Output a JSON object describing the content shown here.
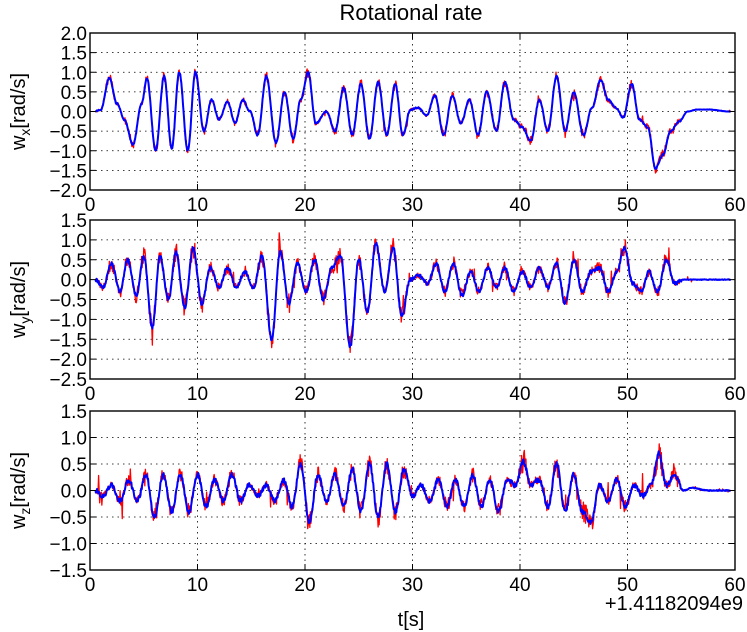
{
  "chart_data": {
    "type": "line",
    "title": "Rotational rate",
    "xlabel": "t[s]",
    "x_offset_label": "+1.41182094e9",
    "xlim": [
      0,
      60
    ],
    "x_ticks": [
      0,
      10,
      20,
      30,
      40,
      50,
      60
    ],
    "x_tick_labels": [
      "0",
      "10",
      "20",
      "30",
      "40",
      "50",
      "60"
    ],
    "series_colors": {
      "raw": "#ff0000",
      "filtered": "#0000ff"
    },
    "subplots": [
      {
        "name": "wx",
        "ylabel_main": "w",
        "ylabel_sub": "x",
        "ylabel_unit": "[rad/s]",
        "ylim": [
          -2.0,
          2.0
        ],
        "y_ticks": [
          2.0,
          1.5,
          1.0,
          0.5,
          0.0,
          -0.5,
          -1.0,
          -1.5,
          -2.0
        ],
        "y_tick_labels": [
          "2.0",
          "1.5",
          "1.0",
          "0.5",
          "0.0",
          "−0.5",
          "−1.0",
          "−1.5",
          "−2.0"
        ],
        "noise": 0.12,
        "peaks": [
          [
            0.5,
            0.0
          ],
          [
            1.0,
            0.05
          ],
          [
            1.8,
            0.85
          ],
          [
            2.5,
            0.2
          ],
          [
            3.2,
            -0.2
          ],
          [
            4.0,
            -0.85
          ],
          [
            4.8,
            0.2
          ],
          [
            5.3,
            0.85
          ],
          [
            6.1,
            -1.0
          ],
          [
            6.9,
            0.9
          ],
          [
            7.6,
            -0.95
          ],
          [
            8.3,
            1.0
          ],
          [
            9.1,
            -1.0
          ],
          [
            9.8,
            1.0
          ],
          [
            10.6,
            -0.5
          ],
          [
            11.3,
            0.3
          ],
          [
            12.0,
            -0.2
          ],
          [
            12.8,
            0.25
          ],
          [
            13.5,
            -0.3
          ],
          [
            14.2,
            0.3
          ],
          [
            14.9,
            0.0
          ],
          [
            15.6,
            -0.6
          ],
          [
            16.4,
            0.9
          ],
          [
            17.3,
            -0.8
          ],
          [
            18.1,
            0.5
          ],
          [
            18.9,
            -0.7
          ],
          [
            19.6,
            0.3
          ],
          [
            20.3,
            1.0
          ],
          [
            21.0,
            -0.3
          ],
          [
            22.0,
            0.0
          ],
          [
            22.8,
            -0.5
          ],
          [
            23.6,
            0.6
          ],
          [
            24.4,
            -0.6
          ],
          [
            25.2,
            0.7
          ],
          [
            26.0,
            -0.7
          ],
          [
            26.8,
            0.75
          ],
          [
            27.6,
            -0.6
          ],
          [
            28.4,
            0.7
          ],
          [
            29.1,
            -0.6
          ],
          [
            29.8,
            0.05
          ],
          [
            30.5,
            0.1
          ],
          [
            31.3,
            -0.1
          ],
          [
            32.1,
            0.4
          ],
          [
            32.9,
            -0.6
          ],
          [
            33.7,
            0.4
          ],
          [
            34.5,
            -0.3
          ],
          [
            35.3,
            0.3
          ],
          [
            36.1,
            -0.6
          ],
          [
            36.9,
            0.5
          ],
          [
            37.8,
            -0.5
          ],
          [
            38.6,
            0.75
          ],
          [
            39.4,
            -0.2
          ],
          [
            40.2,
            -0.4
          ],
          [
            41.0,
            -0.75
          ],
          [
            41.8,
            0.3
          ],
          [
            42.6,
            -0.5
          ],
          [
            43.4,
            0.9
          ],
          [
            44.2,
            -0.5
          ],
          [
            45.0,
            0.5
          ],
          [
            45.9,
            -0.6
          ],
          [
            46.7,
            0.1
          ],
          [
            47.5,
            0.8
          ],
          [
            48.2,
            0.3
          ],
          [
            48.9,
            0.1
          ],
          [
            49.6,
            -0.15
          ],
          [
            50.4,
            0.7
          ],
          [
            51.1,
            -0.2
          ],
          [
            51.9,
            -0.4
          ],
          [
            52.6,
            -1.45
          ],
          [
            53.3,
            -1.1
          ],
          [
            54.0,
            -0.5
          ],
          [
            54.8,
            -0.25
          ],
          [
            55.6,
            0.0
          ],
          [
            56.5,
            0.05
          ],
          [
            57.5,
            0.05
          ],
          [
            59.5,
            0.0
          ]
        ]
      },
      {
        "name": "wy",
        "ylabel_main": "w",
        "ylabel_sub": "y",
        "ylabel_unit": "[rad/s]",
        "ylim": [
          -2.5,
          1.5
        ],
        "y_ticks": [
          1.5,
          1.0,
          0.5,
          0.0,
          -0.5,
          -1.0,
          -1.5,
          -2.0,
          -2.5
        ],
        "y_tick_labels": [
          "1.5",
          "1.0",
          "0.5",
          "0.0",
          "−0.5",
          "−1.0",
          "−1.5",
          "−2.0",
          "−2.5"
        ],
        "noise": 0.25,
        "peaks": [
          [
            0.5,
            0.0
          ],
          [
            1.2,
            -0.2
          ],
          [
            2.0,
            0.4
          ],
          [
            2.8,
            -0.3
          ],
          [
            3.5,
            0.5
          ],
          [
            4.3,
            -0.4
          ],
          [
            5.0,
            0.6
          ],
          [
            5.8,
            -1.2
          ],
          [
            6.5,
            0.6
          ],
          [
            7.3,
            -0.5
          ],
          [
            8.0,
            0.7
          ],
          [
            8.8,
            -0.7
          ],
          [
            9.6,
            0.8
          ],
          [
            10.4,
            -0.6
          ],
          [
            11.2,
            0.3
          ],
          [
            12.0,
            -0.2
          ],
          [
            12.8,
            0.3
          ],
          [
            13.6,
            -0.2
          ],
          [
            14.4,
            0.2
          ],
          [
            15.2,
            -0.2
          ],
          [
            16.0,
            0.6
          ],
          [
            16.9,
            -1.5
          ],
          [
            17.7,
            0.7
          ],
          [
            18.5,
            -0.6
          ],
          [
            19.3,
            0.4
          ],
          [
            20.1,
            -0.3
          ],
          [
            20.9,
            0.5
          ],
          [
            21.7,
            -0.5
          ],
          [
            22.5,
            0.3
          ],
          [
            23.3,
            0.6
          ],
          [
            24.2,
            -1.7
          ],
          [
            25.0,
            0.5
          ],
          [
            25.8,
            -0.8
          ],
          [
            26.6,
            0.9
          ],
          [
            27.4,
            -0.3
          ],
          [
            28.2,
            0.8
          ],
          [
            29.0,
            -0.9
          ],
          [
            29.8,
            0.0
          ],
          [
            30.6,
            0.1
          ],
          [
            31.4,
            -0.1
          ],
          [
            32.2,
            0.4
          ],
          [
            33.0,
            -0.3
          ],
          [
            33.8,
            0.4
          ],
          [
            34.6,
            -0.4
          ],
          [
            35.4,
            0.2
          ],
          [
            36.2,
            -0.3
          ],
          [
            37.0,
            0.3
          ],
          [
            37.8,
            -0.2
          ],
          [
            38.6,
            0.3
          ],
          [
            39.4,
            -0.3
          ],
          [
            40.2,
            0.2
          ],
          [
            41.0,
            -0.2
          ],
          [
            41.8,
            0.3
          ],
          [
            42.6,
            -0.2
          ],
          [
            43.4,
            0.4
          ],
          [
            44.2,
            -0.6
          ],
          [
            45.0,
            0.5
          ],
          [
            45.8,
            -0.3
          ],
          [
            46.6,
            0.2
          ],
          [
            47.4,
            0.3
          ],
          [
            48.2,
            -0.3
          ],
          [
            49.0,
            0.2
          ],
          [
            49.7,
            0.8
          ],
          [
            50.5,
            -0.1
          ],
          [
            51.3,
            -0.3
          ],
          [
            52.0,
            0.2
          ],
          [
            52.8,
            -0.3
          ],
          [
            53.6,
            0.5
          ],
          [
            54.4,
            -0.1
          ],
          [
            55.2,
            0.0
          ],
          [
            56.0,
            0.0
          ],
          [
            57.5,
            0.0
          ],
          [
            59.5,
            0.0
          ]
        ]
      },
      {
        "name": "wz",
        "ylabel_main": "w",
        "ylabel_sub": "z",
        "ylabel_unit": "[rad/s]",
        "ylim": [
          -1.5,
          1.5
        ],
        "y_ticks": [
          1.5,
          1.0,
          0.5,
          0.0,
          -0.5,
          -1.0,
          -1.5
        ],
        "y_tick_labels": [
          "1.5",
          "1.0",
          "0.5",
          "0.0",
          "−0.5",
          "−1.0",
          "−1.5"
        ],
        "noise": 0.25,
        "peaks": [
          [
            0.5,
            0.0
          ],
          [
            1.2,
            -0.1
          ],
          [
            2.0,
            0.1
          ],
          [
            2.8,
            -0.2
          ],
          [
            3.6,
            0.2
          ],
          [
            4.4,
            -0.2
          ],
          [
            5.2,
            0.3
          ],
          [
            6.0,
            -0.5
          ],
          [
            6.8,
            0.3
          ],
          [
            7.6,
            -0.4
          ],
          [
            8.4,
            0.3
          ],
          [
            9.2,
            -0.4
          ],
          [
            10.0,
            0.3
          ],
          [
            10.8,
            -0.3
          ],
          [
            11.6,
            0.2
          ],
          [
            12.4,
            -0.2
          ],
          [
            13.2,
            0.3
          ],
          [
            14.0,
            -0.2
          ],
          [
            14.8,
            0.1
          ],
          [
            15.6,
            -0.1
          ],
          [
            16.4,
            0.1
          ],
          [
            17.2,
            -0.2
          ],
          [
            18.0,
            0.2
          ],
          [
            18.8,
            -0.3
          ],
          [
            19.6,
            0.5
          ],
          [
            20.4,
            -0.6
          ],
          [
            21.2,
            0.3
          ],
          [
            22.0,
            -0.2
          ],
          [
            22.8,
            0.3
          ],
          [
            23.6,
            -0.3
          ],
          [
            24.4,
            0.4
          ],
          [
            25.2,
            -0.4
          ],
          [
            26.0,
            0.5
          ],
          [
            26.8,
            -0.5
          ],
          [
            27.6,
            0.5
          ],
          [
            28.4,
            -0.4
          ],
          [
            29.2,
            0.4
          ],
          [
            30.0,
            -0.1
          ],
          [
            30.8,
            0.1
          ],
          [
            31.6,
            -0.2
          ],
          [
            32.4,
            0.2
          ],
          [
            33.2,
            -0.3
          ],
          [
            34.0,
            0.2
          ],
          [
            34.8,
            -0.3
          ],
          [
            35.6,
            0.3
          ],
          [
            36.4,
            -0.3
          ],
          [
            37.2,
            0.2
          ],
          [
            38.0,
            -0.4
          ],
          [
            38.8,
            0.2
          ],
          [
            39.6,
            0.1
          ],
          [
            40.3,
            0.55
          ],
          [
            41.0,
            0.1
          ],
          [
            41.8,
            0.2
          ],
          [
            42.6,
            -0.3
          ],
          [
            43.4,
            0.5
          ],
          [
            44.2,
            -0.4
          ],
          [
            45.0,
            0.3
          ],
          [
            45.8,
            -0.4
          ],
          [
            46.6,
            -0.6
          ],
          [
            47.4,
            0.1
          ],
          [
            48.2,
            -0.2
          ],
          [
            49.0,
            0.2
          ],
          [
            49.8,
            -0.3
          ],
          [
            50.6,
            0.1
          ],
          [
            51.4,
            -0.1
          ],
          [
            52.2,
            0.1
          ],
          [
            52.9,
            0.7
          ],
          [
            53.6,
            0.1
          ],
          [
            54.4,
            0.3
          ],
          [
            55.2,
            0.0
          ],
          [
            56.0,
            0.05
          ],
          [
            57.5,
            0.0
          ],
          [
            59.5,
            0.0
          ]
        ]
      }
    ]
  }
}
